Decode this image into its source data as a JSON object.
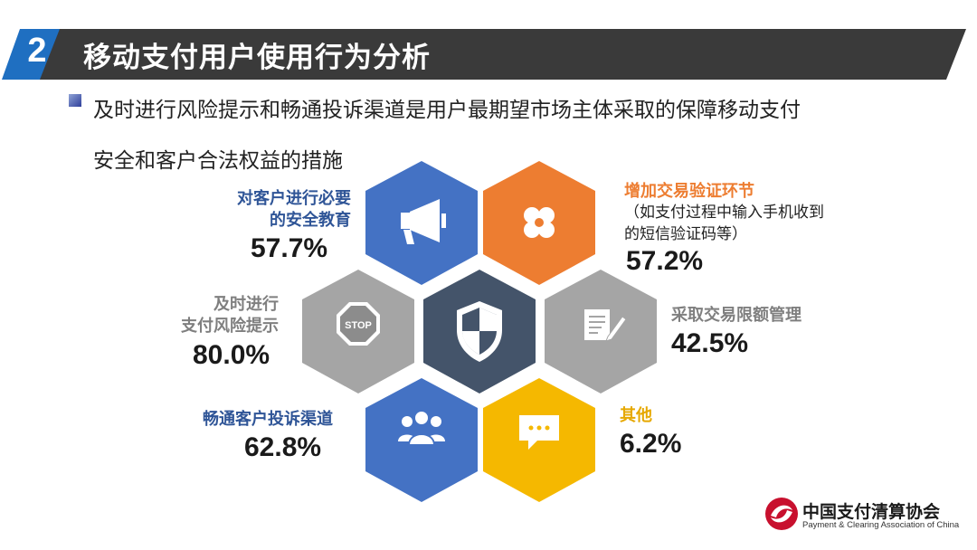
{
  "header": {
    "section_number": "2",
    "title": "移动支付用户使用行为分析"
  },
  "subtitle": {
    "line1": "及时进行风险提示和畅通投诉渠道是用户最期望市场主体采取的保障移动支付",
    "line2": "安全和客户合法权益的措施"
  },
  "colors": {
    "blue": "#4472C4",
    "orange": "#ED7D31",
    "gray": "#A5A5A5",
    "navy": "#44546A",
    "yellow": "#F5B800",
    "banner": "#3a3a3a"
  },
  "items": [
    {
      "label_lines": [
        "对客户进行必要",
        "的安全教育"
      ],
      "value": "57.7%",
      "icon": "megaphone-icon",
      "color": "#4472C4"
    },
    {
      "label_lines": [
        "增加交易验证环节"
      ],
      "note_lines": [
        "（如支付过程中输入手机收到",
        "的短信验证码等）"
      ],
      "value": "57.2%",
      "icon": "clover-icon",
      "color": "#ED7D31"
    },
    {
      "label_lines": [
        "及时进行",
        "支付风险提示"
      ],
      "value": "80.0%",
      "icon": "stop-sign-icon",
      "color": "#A5A5A5"
    },
    {
      "label_lines": [
        "采取交易限额管理"
      ],
      "value": "42.5%",
      "icon": "notepad-pencil-icon",
      "color": "#A5A5A5"
    },
    {
      "label_lines": [
        "畅通客户投诉渠道"
      ],
      "value": "62.8%",
      "icon": "people-group-icon",
      "color": "#4472C4"
    },
    {
      "label_lines": [
        "其他"
      ],
      "value": "6.2%",
      "icon": "chat-bubble-icon",
      "color": "#F5B800"
    }
  ],
  "center_icon": "shield-icon",
  "logo": {
    "name_cn": "中国支付清算协会",
    "name_en": "Payment & Clearing Association of China"
  }
}
